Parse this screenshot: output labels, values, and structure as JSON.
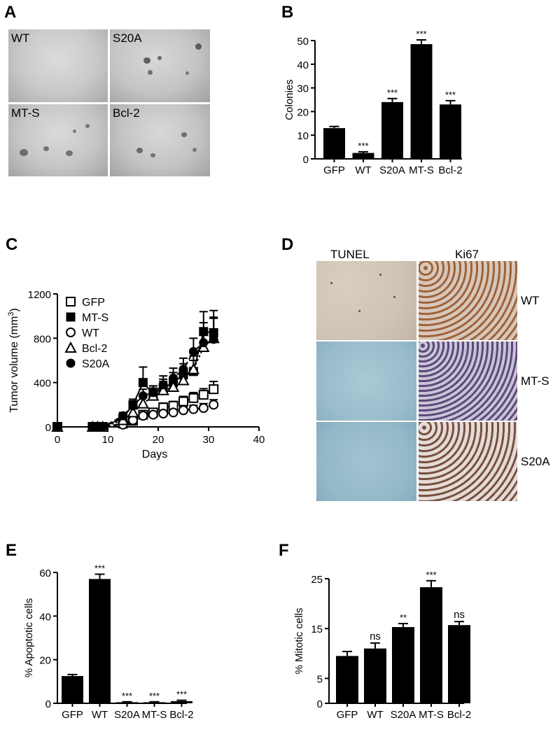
{
  "panels": {
    "A": {
      "letter": "A",
      "images": [
        {
          "label": "WT"
        },
        {
          "label": "S20A"
        },
        {
          "label": "MT-S"
        },
        {
          "label": "Bcl-2"
        }
      ]
    },
    "B": {
      "letter": "B"
    },
    "C": {
      "letter": "C"
    },
    "D": {
      "letter": "D",
      "col_headers": [
        "TUNEL",
        "Ki67"
      ],
      "row_labels": [
        "WT",
        "MT-S",
        "S20A"
      ]
    },
    "E": {
      "letter": "E"
    },
    "F": {
      "letter": "F"
    }
  },
  "chart_data": [
    {
      "id": "B",
      "type": "bar",
      "categories": [
        "GFP",
        "WT",
        "S20A",
        "MT-S",
        "Bcl-2"
      ],
      "values": [
        13,
        2.5,
        24,
        48.5,
        23
      ],
      "errors": [
        0.7,
        0.5,
        1.5,
        1.8,
        1.6
      ],
      "annotations": [
        "",
        "***",
        "***",
        "***",
        "***"
      ],
      "ylabel": "Colonies",
      "ylim": [
        0,
        50
      ],
      "yticks": [
        0,
        10,
        20,
        30,
        40,
        50
      ],
      "bar_color": "#000000"
    },
    {
      "id": "C",
      "type": "line",
      "xlabel": "Days",
      "ylabel": "Tumor volume (mm",
      "ylabel_sup": "3",
      "ylabel_close": ")",
      "xlim": [
        0,
        40
      ],
      "ylim": [
        0,
        1200
      ],
      "xticks": [
        0,
        10,
        20,
        30,
        40
      ],
      "yticks": [
        0,
        400,
        800,
        1200
      ],
      "series": [
        {
          "name": "GFP",
          "marker": "square-open",
          "x": [
            0,
            7,
            8,
            9,
            13,
            15,
            17,
            19,
            21,
            23,
            25,
            27,
            29,
            31
          ],
          "y": [
            0,
            0,
            0,
            0,
            30,
            55,
            110,
            130,
            175,
            190,
            230,
            260,
            290,
            340
          ],
          "err": [
            0,
            0,
            0,
            0,
            10,
            15,
            25,
            30,
            40,
            40,
            45,
            50,
            55,
            70
          ]
        },
        {
          "name": "MT-S",
          "marker": "square-filled",
          "x": [
            0,
            7,
            8,
            9,
            13,
            15,
            17,
            19,
            21,
            23,
            25,
            27,
            29,
            31
          ],
          "y": [
            0,
            0,
            0,
            0,
            80,
            200,
            400,
            300,
            350,
            400,
            470,
            500,
            860,
            850
          ],
          "err": [
            0,
            0,
            0,
            0,
            30,
            50,
            140,
            70,
            80,
            90,
            100,
            100,
            180,
            200
          ]
        },
        {
          "name": "WT",
          "marker": "circle-open",
          "x": [
            0,
            7,
            8,
            9,
            13,
            15,
            17,
            19,
            21,
            23,
            25,
            27,
            29,
            31
          ],
          "y": [
            0,
            0,
            0,
            0,
            20,
            60,
            100,
            110,
            120,
            130,
            150,
            160,
            170,
            200
          ],
          "err": [
            0,
            0,
            0,
            0,
            10,
            15,
            20,
            25,
            25,
            30,
            30,
            35,
            40,
            45
          ]
        },
        {
          "name": "Bcl-2",
          "marker": "triangle-open",
          "x": [
            0,
            7,
            8,
            9,
            13,
            15,
            17,
            19,
            21,
            23,
            25,
            27,
            29,
            31
          ],
          "y": [
            0,
            0,
            0,
            0,
            60,
            130,
            210,
            280,
            330,
            360,
            420,
            520,
            720,
            800
          ],
          "err": [
            0,
            0,
            0,
            0,
            20,
            40,
            60,
            70,
            80,
            90,
            100,
            120,
            160,
            180
          ]
        },
        {
          "name": "S20A",
          "marker": "circle-filled",
          "x": [
            0,
            7,
            8,
            9,
            13,
            15,
            17,
            19,
            21,
            23,
            25,
            27,
            29,
            31
          ],
          "y": [
            0,
            0,
            0,
            0,
            100,
            190,
            280,
            310,
            380,
            440,
            520,
            680,
            760,
            790
          ],
          "err": [
            0,
            0,
            0,
            0,
            30,
            40,
            60,
            60,
            80,
            90,
            100,
            120,
            180,
            200
          ]
        }
      ]
    },
    {
      "id": "E",
      "type": "bar",
      "categories": [
        "GFP",
        "WT",
        "S20A",
        "MT-S",
        "Bcl-2"
      ],
      "values": [
        12.5,
        57,
        0.5,
        0.5,
        1
      ],
      "errors": [
        0.7,
        2.2,
        0.2,
        0.2,
        0.4
      ],
      "annotations": [
        "",
        "***",
        "***",
        "***",
        "***"
      ],
      "ylabel": "% Apoptotic cells",
      "ylim": [
        0,
        60
      ],
      "yticks": [
        0,
        20,
        40,
        60
      ],
      "bar_color": "#000000"
    },
    {
      "id": "F",
      "type": "bar",
      "categories": [
        "GFP",
        "WT",
        "S20A",
        "MT-S",
        "Bcl-2"
      ],
      "values": [
        9.5,
        11,
        15.3,
        23.3,
        15.7
      ],
      "errors": [
        0.9,
        1.1,
        0.7,
        1.3,
        0.7
      ],
      "annotations": [
        "",
        "ns",
        "**",
        "***",
        "ns"
      ],
      "ylabel": "% Mitotic cells",
      "ylim": [
        0,
        25
      ],
      "yticks": [
        0,
        5,
        15,
        25
      ],
      "bar_color": "#000000"
    }
  ]
}
